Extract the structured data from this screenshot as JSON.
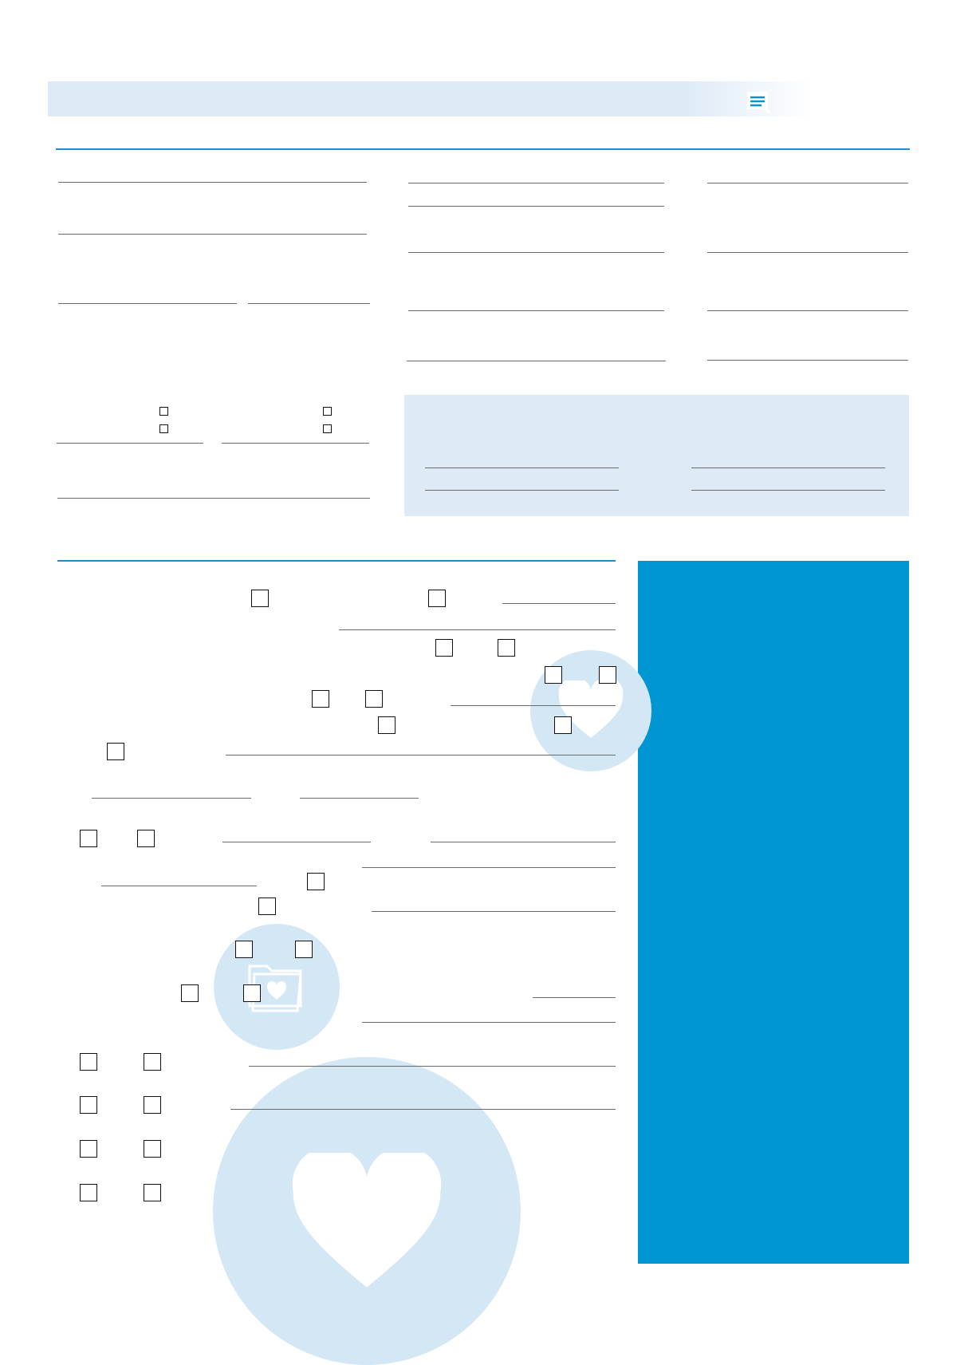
{
  "colors": {
    "accent": "#0095d3",
    "light_blue": "#deebf7",
    "watermark": "#d4e7f5",
    "rule": "#1c8fcc"
  },
  "header_icons": [
    {
      "name": "message-document-icon"
    },
    {
      "name": "female-person-icon"
    },
    {
      "name": "gender-symbols-icon"
    }
  ],
  "watermarks": [
    {
      "name": "heart-icon"
    },
    {
      "name": "folder-heart-icon"
    },
    {
      "name": "large-heart-icon"
    }
  ],
  "checkboxes_checked": false
}
